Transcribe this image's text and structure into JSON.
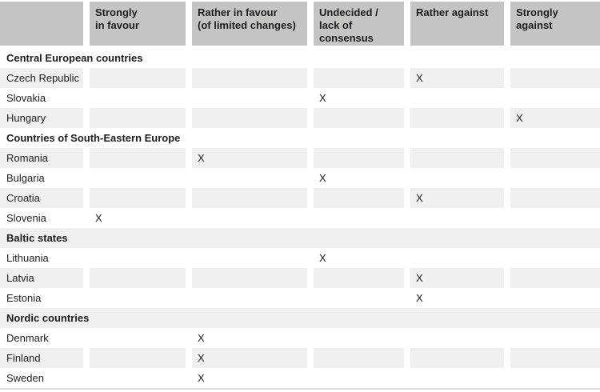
{
  "colors": {
    "header_bg": "#c4c4c4",
    "stripe": "#efefef",
    "row_white": "#ffffff",
    "rule": "#dcdcdc",
    "text": "#1d1d1b"
  },
  "chart_data": {
    "type": "table",
    "title": "",
    "mark": "X",
    "columns": [
      "Strongly in favour",
      "Rather in favour (of limited changes)",
      "Undecided / lack of consensus",
      "Rather against",
      "Strongly against"
    ],
    "column_lines": [
      [
        "Strongly",
        "in favour"
      ],
      [
        "Rather in favour",
        "(of limited changes)"
      ],
      [
        "Undecided /",
        "lack of consensus"
      ],
      [
        "Rather against",
        ""
      ],
      [
        "Strongly against",
        ""
      ]
    ],
    "groups": [
      {
        "label": "Central European countries",
        "rows": [
          {
            "country": "Czech Republic",
            "col": 3,
            "position": "Rather against"
          },
          {
            "country": "Slovakia",
            "col": 2,
            "position": "Undecided / lack of consensus"
          },
          {
            "country": "Hungary",
            "col": 4,
            "position": "Strongly against"
          }
        ]
      },
      {
        "label": "Countries of South-Eastern Europe",
        "rows": [
          {
            "country": "Romania",
            "col": 1,
            "position": "Rather in favour (of limited changes)"
          },
          {
            "country": "Bulgaria",
            "col": 2,
            "position": "Undecided / lack of consensus"
          },
          {
            "country": "Croatia",
            "col": 3,
            "position": "Rather against"
          },
          {
            "country": "Slovenia",
            "col": 0,
            "position": "Strongly in favour"
          }
        ]
      },
      {
        "label": "Baltic states",
        "rows": [
          {
            "country": "Lithuania",
            "col": 2,
            "position": "Undecided / lack of consensus"
          },
          {
            "country": "Latvia",
            "col": 3,
            "position": "Rather against"
          },
          {
            "country": "Estonia",
            "col": 3,
            "position": "Rather against"
          }
        ]
      },
      {
        "label": "Nordic countries",
        "rows": [
          {
            "country": "Denmark",
            "col": 1,
            "position": "Rather in favour (of limited changes)"
          },
          {
            "country": "Finland",
            "col": 1,
            "position": "Rather in favour (of limited changes)"
          },
          {
            "country": "Sweden",
            "col": 1,
            "position": "Rather in favour (of limited changes)"
          }
        ]
      }
    ]
  }
}
